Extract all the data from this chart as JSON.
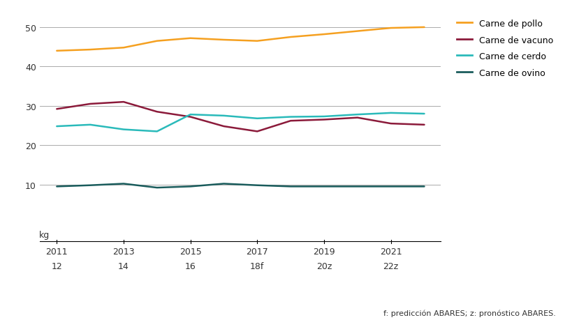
{
  "x_values": [
    2011,
    2012,
    2013,
    2014,
    2015,
    2016,
    2017,
    2018,
    2019,
    2020,
    2021,
    2022
  ],
  "pollo": [
    44.0,
    44.3,
    44.8,
    46.5,
    47.2,
    46.8,
    46.5,
    47.5,
    48.2,
    49.0,
    49.8,
    50.0
  ],
  "vacuno": [
    29.2,
    30.5,
    31.0,
    28.5,
    27.2,
    24.8,
    23.5,
    26.2,
    26.5,
    27.0,
    25.5,
    25.2
  ],
  "cerdo": [
    24.8,
    25.2,
    24.0,
    23.5,
    27.8,
    27.5,
    26.8,
    27.2,
    27.3,
    27.8,
    28.2,
    28.0
  ],
  "ovino": [
    9.5,
    9.8,
    10.2,
    9.2,
    9.5,
    10.2,
    9.8,
    9.5,
    9.5,
    9.5,
    9.5,
    9.5
  ],
  "color_pollo": "#F5A020",
  "color_vacuno": "#8B1A3A",
  "color_cerdo": "#2ABABA",
  "color_ovino": "#1A5C5C",
  "xtick_top": [
    "2011",
    "2013",
    "2015",
    "2017",
    "2019",
    "2021"
  ],
  "xtick_bottom": [
    "12",
    "14",
    "16",
    "18f",
    "20z",
    "22z"
  ],
  "xtick_pos": [
    2011,
    2013,
    2015,
    2017,
    2019,
    2021
  ],
  "yticks": [
    10,
    20,
    30,
    40,
    50
  ],
  "ylabel": "kg",
  "legend_labels": [
    "Carne de pollo",
    "Carne de vacuno",
    "Carne de cerdo",
    "Carne de ovino"
  ],
  "footnote_regular": "f: predicción ABARES; ",
  "footnote_bold": "z",
  "footnote_end": ": pronóstico ABARES.",
  "background_color": "#FFFFFF",
  "grid_color": "#AAAAAA",
  "linewidth": 1.8
}
